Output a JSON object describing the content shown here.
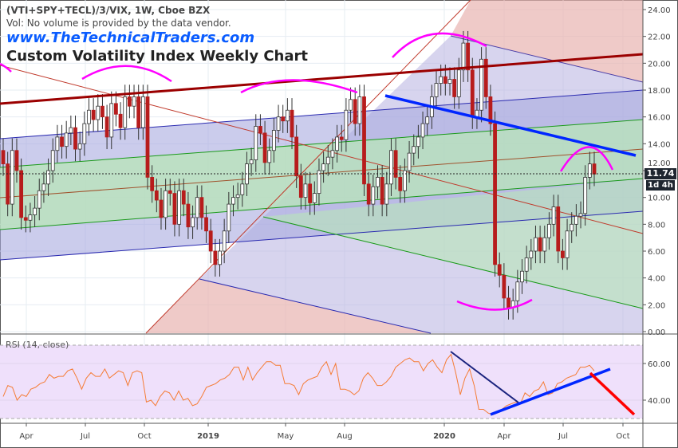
{
  "header": {
    "symbol_line": "(VTI+SPY+TECL)/3/VIX, 1W, Cboe BZX",
    "volume_note": "Vol: No volume is provided by the data vendor.",
    "watermark": "www.TheTechnicalTraders.com",
    "title": "Custom Volatility Index Weekly Chart"
  },
  "colors": {
    "bull": "#ffffff",
    "bear": "#b71c1c",
    "outline": "#333333",
    "rsi": "#f57c35",
    "annotation": "#ff00ff",
    "trendline": "#0026ff",
    "brand": "#0a5cff"
  },
  "price_label": {
    "value": "11.74",
    "countdown": "1d 4h"
  },
  "chart_data": [
    {
      "type": "candlestick",
      "interval": "1W",
      "ylim": [
        0,
        24
      ],
      "yticks": [
        "0.00",
        "2.00",
        "4.00",
        "6.00",
        "8.00",
        "10.00",
        "12.00",
        "14.00",
        "16.00",
        "18.00",
        "20.00",
        "22.00",
        "24.00"
      ],
      "xticks": [
        "Apr",
        "Jul",
        "Oct",
        "2019",
        "May",
        "Aug",
        "2020",
        "Apr",
        "Jul",
        "Oct"
      ],
      "grid": true,
      "closes": [
        12.5,
        9.5,
        13.5,
        12,
        8.5,
        8.3,
        8.7,
        9.2,
        10.5,
        11,
        12,
        13.5,
        14.5,
        13.8,
        14.8,
        15.2,
        13.6,
        14,
        15.5,
        16.5,
        15.8,
        16.8,
        16,
        14.5,
        17,
        16.2,
        15.2,
        17.5,
        16.8,
        17.5,
        15.2,
        17.5,
        11.5,
        10.5,
        9.8,
        8.5,
        10.5,
        10.3,
        8,
        10.5,
        9.5,
        7.8,
        8.5,
        10,
        8.5,
        7.5,
        6,
        5,
        6,
        7.5,
        9.5,
        10,
        10.2,
        11,
        12.5,
        12.8,
        15.3,
        14.8,
        12.6,
        13.5,
        15,
        16,
        15.7,
        16.5,
        14.5,
        11.6,
        10,
        11,
        9.6,
        10.3,
        12,
        12.5,
        13,
        13.5,
        14.5,
        14.3,
        16.5,
        17.3,
        15.5,
        17.5,
        11,
        9.5,
        10.8,
        11.5,
        9.5,
        11,
        13.5,
        11.5,
        10.5,
        12,
        13.3,
        13.8,
        14.5,
        15.5,
        16,
        17.5,
        18.5,
        19,
        18.5,
        18.8,
        17.5,
        19.5,
        21.5,
        19.5,
        16,
        16.5,
        20.3,
        17.5,
        15.5,
        5,
        4.2,
        2.5,
        1.8,
        2.3,
        3.7,
        4.5,
        5.5,
        6,
        7,
        6,
        7,
        8,
        9.3,
        6,
        5.5,
        7.5,
        8,
        8.6,
        8.8,
        11.5,
        12.5,
        11.74
      ],
      "last": 11.74
    },
    {
      "type": "line",
      "name": "RSI (14, close)",
      "ylim": [
        25,
        75
      ],
      "yticks": [
        "40.00",
        "60.00"
      ],
      "bands": [
        30,
        70
      ],
      "values": [
        42,
        48,
        47,
        40,
        43,
        42,
        46,
        47,
        49,
        50,
        54,
        52,
        53,
        53,
        56,
        57,
        52,
        46,
        52,
        55,
        53,
        53,
        57,
        52,
        54,
        56,
        55,
        48,
        55,
        56,
        55,
        39,
        40,
        37,
        42,
        45,
        44,
        40,
        45,
        40,
        41,
        37,
        38,
        42,
        47,
        48,
        49,
        51,
        52,
        54,
        58,
        58,
        51,
        58,
        51,
        55,
        58,
        61,
        61,
        59,
        59,
        49,
        49,
        48,
        43,
        49,
        51,
        52,
        53,
        58,
        61,
        54,
        60,
        46,
        46,
        45,
        43,
        45,
        52,
        55,
        52,
        48,
        48,
        50,
        53,
        58,
        60,
        62,
        63,
        61,
        61,
        56,
        60,
        62,
        58,
        55,
        62,
        65,
        55,
        43,
        52,
        57,
        48,
        35,
        35,
        33,
        32,
        33,
        35,
        37,
        38,
        39,
        38,
        44,
        42,
        45,
        46,
        50,
        43,
        44,
        49,
        50,
        52,
        53,
        54,
        58,
        58,
        59,
        56
      ]
    }
  ]
}
